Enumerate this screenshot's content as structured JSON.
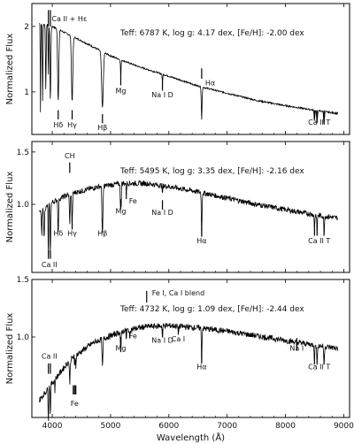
{
  "chart_data": {
    "type": "line",
    "xlabel": "Wavelength (Å)",
    "xlim": [
      3650,
      9100
    ],
    "x_ticks": [
      "4000",
      "5000",
      "6000",
      "7000",
      "8000",
      "9000"
    ],
    "panels": [
      {
        "ylabel": "Normalized Flux",
        "ylim": [
          0.35,
          2.35
        ],
        "y_ticks": [
          {
            "v": 1,
            "label": "1"
          },
          {
            "v": 2,
            "label": "2"
          }
        ],
        "info": "Teff: 6787 K,  log g: 4.17 dex, [Fe/H]: -2.00 dex",
        "continuum": [
          [
            3780,
            2.05
          ],
          [
            4000,
            2.0
          ],
          [
            4500,
            1.78
          ],
          [
            5000,
            1.55
          ],
          [
            5500,
            1.38
          ],
          [
            6000,
            1.24
          ],
          [
            6500,
            1.09
          ],
          [
            7000,
            0.98
          ],
          [
            7500,
            0.87
          ],
          [
            8000,
            0.79
          ],
          [
            8500,
            0.72
          ],
          [
            8900,
            0.67
          ]
        ],
        "lines": [
          [
            3798,
            1.35,
            6
          ],
          [
            3835,
            1.2,
            7
          ],
          [
            3889,
            1.0,
            8
          ],
          [
            3934,
            0.85,
            6
          ],
          [
            3968,
            1.15,
            10
          ],
          [
            4102,
            1.1,
            14
          ],
          [
            4341,
            1.0,
            16
          ],
          [
            4861,
            0.85,
            20
          ],
          [
            5175,
            0.25,
            8
          ],
          [
            5890,
            0.15,
            6
          ],
          [
            6563,
            0.5,
            10
          ],
          [
            8498,
            0.15,
            10
          ],
          [
            8542,
            0.2,
            10
          ],
          [
            8662,
            0.2,
            10
          ]
        ],
        "noise": 0.012,
        "labels": [
          {
            "text": "Ca II + Hε",
            "x": 3990,
            "y": 2.08,
            "anchor": "start"
          },
          {
            "text": "Mg",
            "x": 5175,
            "y": 0.98,
            "anchor": "middle"
          },
          {
            "text": "Na I D",
            "x": 5890,
            "y": 0.92,
            "anchor": "middle"
          },
          {
            "text": "Hα",
            "x": 6563,
            "y": 1.1,
            "anchor": "start",
            "dx": 4
          },
          {
            "text": "Hδ",
            "x": 4102,
            "y": 0.46,
            "anchor": "middle"
          },
          {
            "text": "Hγ",
            "x": 4341,
            "y": 0.46,
            "anchor": "middle"
          },
          {
            "text": "Hβ",
            "x": 4861,
            "y": 0.42,
            "anchor": "middle"
          },
          {
            "text": "Ca II T",
            "x": 8580,
            "y": 0.5,
            "anchor": "middle"
          }
        ],
        "markers": [
          [
            3934,
            2.0,
            2.25
          ],
          [
            3968,
            2.0,
            2.25
          ],
          [
            4102,
            0.58,
            0.72
          ],
          [
            4341,
            0.58,
            0.72
          ],
          [
            4861,
            0.52,
            0.66
          ],
          [
            5175,
            1.1,
            1.28
          ],
          [
            5890,
            1.02,
            1.16
          ],
          [
            6563,
            1.2,
            1.36
          ],
          [
            8498,
            0.58,
            0.72
          ],
          [
            8542,
            0.58,
            0.72
          ],
          [
            8662,
            0.58,
            0.72
          ]
        ]
      },
      {
        "ylabel": "Normalized Flux",
        "ylim": [
          0.35,
          1.6
        ],
        "y_ticks": [
          {
            "v": 1.0,
            "label": "1.0"
          },
          {
            "v": 1.5,
            "label": "1.5"
          }
        ],
        "info": "Teff: 5495 K,  log g: 3.35 dex, [Fe/H]: -2.16 dex",
        "continuum": [
          [
            3780,
            0.92
          ],
          [
            4000,
            1.02
          ],
          [
            4300,
            1.1
          ],
          [
            4800,
            1.17
          ],
          [
            5200,
            1.2
          ],
          [
            5600,
            1.2
          ],
          [
            6000,
            1.17
          ],
          [
            6500,
            1.12
          ],
          [
            7000,
            1.06
          ],
          [
            7500,
            1.0
          ],
          [
            8000,
            0.95
          ],
          [
            8500,
            0.9
          ],
          [
            8900,
            0.87
          ]
        ],
        "lines": [
          [
            3820,
            0.25,
            8
          ],
          [
            3860,
            0.3,
            8
          ],
          [
            3934,
            0.55,
            6
          ],
          [
            3968,
            0.5,
            8
          ],
          [
            4102,
            0.35,
            8
          ],
          [
            4300,
            0.28,
            10
          ],
          [
            4341,
            0.3,
            9
          ],
          [
            4861,
            0.45,
            12
          ],
          [
            5167,
            0.18,
            5
          ],
          [
            5175,
            0.2,
            6
          ],
          [
            5184,
            0.18,
            5
          ],
          [
            5270,
            0.1,
            6
          ],
          [
            5890,
            0.1,
            5
          ],
          [
            6563,
            0.42,
            9
          ],
          [
            8498,
            0.12,
            8
          ],
          [
            8542,
            0.15,
            8
          ],
          [
            8662,
            0.15,
            8
          ]
        ],
        "noise": 0.025,
        "labels": [
          {
            "text": "CH",
            "x": 4300,
            "y": 1.44,
            "anchor": "middle"
          },
          {
            "text": "Fe",
            "x": 5270,
            "y": 1.01,
            "anchor": "start",
            "dx": 3
          },
          {
            "text": "Mg",
            "x": 5175,
            "y": 0.91,
            "anchor": "middle"
          },
          {
            "text": "Na I D",
            "x": 5890,
            "y": 0.9,
            "anchor": "middle"
          },
          {
            "text": "Hδ",
            "x": 4102,
            "y": 0.7,
            "anchor": "middle"
          },
          {
            "text": "Hγ",
            "x": 4341,
            "y": 0.7,
            "anchor": "middle"
          },
          {
            "text": "Hβ",
            "x": 4861,
            "y": 0.7,
            "anchor": "middle"
          },
          {
            "text": "Hα",
            "x": 6563,
            "y": 0.63,
            "anchor": "middle"
          },
          {
            "text": "Ca II T",
            "x": 8580,
            "y": 0.63,
            "anchor": "middle"
          },
          {
            "text": "Ca II",
            "x": 3950,
            "y": 0.4,
            "anchor": "middle"
          }
        ],
        "markers": [
          [
            4300,
            1.3,
            1.4
          ],
          [
            5175,
            0.96,
            1.05
          ],
          [
            5270,
            1.05,
            1.12
          ],
          [
            5890,
            0.95,
            1.04
          ],
          [
            4102,
            0.76,
            0.86
          ],
          [
            4341,
            0.76,
            0.86
          ],
          [
            4861,
            0.76,
            0.86
          ],
          [
            6563,
            0.69,
            0.78
          ],
          [
            8498,
            0.7,
            0.8
          ],
          [
            8542,
            0.7,
            0.8
          ],
          [
            8662,
            0.7,
            0.8
          ],
          [
            3934,
            0.48,
            0.56
          ],
          [
            3968,
            0.48,
            0.56
          ]
        ]
      },
      {
        "ylabel": "Normalized Flux",
        "ylim": [
          0.3,
          1.5
        ],
        "y_ticks": [
          {
            "v": 1.0,
            "label": "1.0"
          },
          {
            "v": 1.5,
            "label": "1.5"
          }
        ],
        "info": "Teff: 4732 K,  log g: 1.09 dex, [Fe/H]: -2.44 dex",
        "continuum": [
          [
            3780,
            0.45
          ],
          [
            4000,
            0.6
          ],
          [
            4300,
            0.8
          ],
          [
            4700,
            0.95
          ],
          [
            5200,
            1.05
          ],
          [
            5600,
            1.09
          ],
          [
            6000,
            1.1
          ],
          [
            6500,
            1.08
          ],
          [
            7000,
            1.05
          ],
          [
            7500,
            1.01
          ],
          [
            8000,
            0.97
          ],
          [
            8500,
            0.93
          ],
          [
            8900,
            0.9
          ]
        ],
        "lines": [
          [
            3934,
            0.3,
            6
          ],
          [
            3968,
            0.28,
            6
          ],
          [
            4046,
            0.12,
            5
          ],
          [
            4300,
            0.2,
            10
          ],
          [
            4383,
            0.12,
            5
          ],
          [
            4404,
            0.12,
            5
          ],
          [
            4861,
            0.25,
            10
          ],
          [
            5175,
            0.22,
            8
          ],
          [
            5270,
            0.1,
            5
          ],
          [
            5328,
            0.1,
            5
          ],
          [
            5890,
            0.12,
            6
          ],
          [
            6162,
            0.08,
            6
          ],
          [
            6563,
            0.3,
            8
          ],
          [
            8194,
            0.08,
            6
          ],
          [
            8498,
            0.12,
            8
          ],
          [
            8542,
            0.16,
            8
          ],
          [
            8662,
            0.16,
            8
          ]
        ],
        "noise": 0.025,
        "labels": [
          {
            "text": "Fe I, Ca I blend",
            "x": 5620,
            "y": 1.36,
            "anchor": "start",
            "dx": 6
          },
          {
            "text": "Fe",
            "x": 5270,
            "y": 0.99,
            "anchor": "start",
            "dx": 3
          },
          {
            "text": "Mg",
            "x": 5175,
            "y": 0.88,
            "anchor": "middle"
          },
          {
            "text": "Na I D",
            "x": 5890,
            "y": 0.95,
            "anchor": "middle"
          },
          {
            "text": "Ca I",
            "x": 6162,
            "y": 0.96,
            "anchor": "middle"
          },
          {
            "text": "Hα",
            "x": 6563,
            "y": 0.72,
            "anchor": "middle"
          },
          {
            "text": "Na I",
            "x": 8194,
            "y": 0.88,
            "anchor": "middle"
          },
          {
            "text": "Ca II T",
            "x": 8580,
            "y": 0.72,
            "anchor": "middle"
          },
          {
            "text": "Ca II",
            "x": 3950,
            "y": 0.81,
            "anchor": "middle"
          },
          {
            "text": "Fe",
            "x": 4383,
            "y": 0.4,
            "anchor": "middle"
          }
        ],
        "markers": [
          [
            5620,
            1.3,
            1.4
          ],
          [
            5175,
            0.92,
            1.0
          ],
          [
            5270,
            0.99,
            1.07
          ],
          [
            5890,
            1.0,
            1.07
          ],
          [
            6162,
            1.02,
            1.09
          ],
          [
            6563,
            0.77,
            0.86
          ],
          [
            8194,
            0.92,
            0.99
          ],
          [
            8498,
            0.76,
            0.85
          ],
          [
            8542,
            0.76,
            0.85
          ],
          [
            8662,
            0.76,
            0.85
          ],
          [
            3934,
            0.68,
            0.77
          ],
          [
            3968,
            0.68,
            0.77
          ],
          [
            4360,
            0.5,
            0.58
          ],
          [
            4383,
            0.5,
            0.58
          ],
          [
            4404,
            0.5,
            0.58
          ]
        ]
      }
    ]
  }
}
